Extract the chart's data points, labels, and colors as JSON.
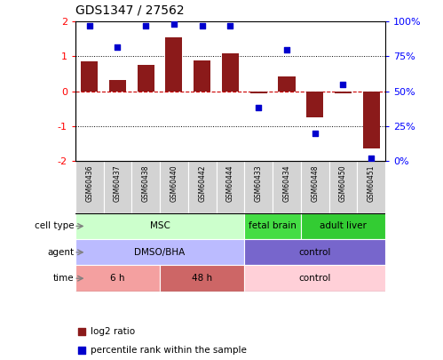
{
  "title": "GDS1347 / 27562",
  "samples": [
    "GSM60436",
    "GSM60437",
    "GSM60438",
    "GSM60440",
    "GSM60442",
    "GSM60444",
    "GSM60433",
    "GSM60434",
    "GSM60448",
    "GSM60450",
    "GSM60451"
  ],
  "log2_ratio": [
    0.85,
    0.32,
    0.75,
    1.55,
    0.88,
    1.1,
    -0.07,
    0.42,
    -0.75,
    -0.05,
    -1.65
  ],
  "percentile_rank": [
    97,
    82,
    97,
    98,
    97,
    97,
    38,
    80,
    20,
    55,
    2
  ],
  "bar_color": "#8B1A1A",
  "dot_color": "#0000CD",
  "hline_color": "#CC0000",
  "dotline_color": "black",
  "ylim_left": [
    -2,
    2
  ],
  "ylim_right": [
    0,
    100
  ],
  "yticks_left": [
    -2,
    -1,
    0,
    1,
    2
  ],
  "yticks_right": [
    0,
    25,
    50,
    75,
    100
  ],
  "ytick_labels_right": [
    "0%",
    "25%",
    "50%",
    "75%",
    "100%"
  ],
  "cell_type_groups": [
    {
      "label": "MSC",
      "start": 0,
      "end": 6,
      "color": "#CCFFCC"
    },
    {
      "label": "fetal brain",
      "start": 6,
      "end": 8,
      "color": "#44DD44"
    },
    {
      "label": "adult liver",
      "start": 8,
      "end": 11,
      "color": "#33CC33"
    }
  ],
  "agent_groups": [
    {
      "label": "DMSO/BHA",
      "start": 0,
      "end": 6,
      "color": "#BBBBFF"
    },
    {
      "label": "control",
      "start": 6,
      "end": 11,
      "color": "#7766CC"
    }
  ],
  "time_groups": [
    {
      "label": "6 h",
      "start": 0,
      "end": 3,
      "color": "#F4A0A0"
    },
    {
      "label": "48 h",
      "start": 3,
      "end": 6,
      "color": "#CD6666"
    },
    {
      "label": "control",
      "start": 6,
      "end": 11,
      "color": "#FFD0D8"
    }
  ],
  "legend_bar_color": "#8B1A1A",
  "legend_dot_color": "#0000CD",
  "legend_text1": "log2 ratio",
  "legend_text2": "percentile rank within the sample",
  "row_labels": [
    "cell type",
    "agent",
    "time"
  ],
  "xtick_bg": "#D3D3D3",
  "n_samples": 11
}
